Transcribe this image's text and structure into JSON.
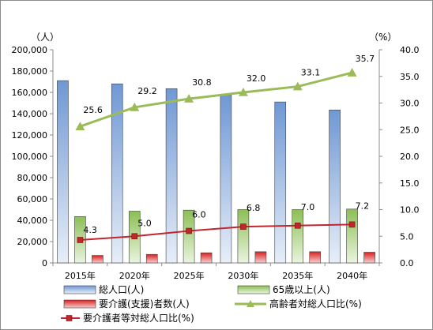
{
  "chart_data": {
    "type": "bar",
    "categories": [
      "2015年",
      "2020年",
      "2025年",
      "2030年",
      "2035年",
      "2040年"
    ],
    "left_unit": "（人）",
    "right_unit": "（%）",
    "left_axis": {
      "ylim": [
        0,
        200000
      ],
      "ticks": [
        0,
        20000,
        40000,
        60000,
        80000,
        100000,
        120000,
        140000,
        160000,
        180000,
        200000
      ],
      "tick_labels": [
        "0",
        "20,000",
        "40,000",
        "60,000",
        "80,000",
        "100,000",
        "120,000",
        "140,000",
        "160,000",
        "180,000",
        "200,000"
      ]
    },
    "right_axis": {
      "ylim": [
        0,
        40
      ],
      "ticks": [
        0,
        5,
        10,
        15,
        20,
        25,
        30,
        35,
        40
      ],
      "tick_labels": [
        "0.0",
        "5.0",
        "10.0",
        "15.0",
        "20.0",
        "25.0",
        "30.0",
        "35.0",
        "40.0"
      ]
    },
    "series": [
      {
        "name": "総人口(人)",
        "type": "bar",
        "axis": "left",
        "color": "#7fa6d9",
        "values": [
          171000,
          168000,
          163500,
          157500,
          151000,
          143500
        ]
      },
      {
        "name": "65歳以上(人)",
        "type": "bar",
        "axis": "left",
        "color": "#9bc56b",
        "values": [
          43500,
          48500,
          49500,
          50000,
          50000,
          50500
        ]
      },
      {
        "name": "要介護(支援)者数(人)",
        "type": "bar",
        "axis": "left",
        "color": "#e03030",
        "values": [
          7000,
          8000,
          9500,
          10500,
          10500,
          10000
        ]
      },
      {
        "name": "高齢者対総人口比(%)",
        "type": "line",
        "axis": "right",
        "color": "#9bbb59",
        "marker": "triangle",
        "values": [
          25.6,
          29.2,
          30.8,
          32.0,
          33.1,
          35.7
        ],
        "labels": [
          "25.6",
          "29.2",
          "30.8",
          "32.0",
          "33.1",
          "35.7"
        ]
      },
      {
        "name": "要介護者等対総人口比(%)",
        "type": "line",
        "axis": "right",
        "color": "#c0262d",
        "marker": "square",
        "values": [
          4.3,
          5.0,
          6.0,
          6.8,
          7.0,
          7.2
        ],
        "labels": [
          "4.3",
          "5.0",
          "6.0",
          "6.8",
          "7.0",
          "7.2"
        ]
      }
    ],
    "grid": false,
    "legend_position": "bottom"
  }
}
